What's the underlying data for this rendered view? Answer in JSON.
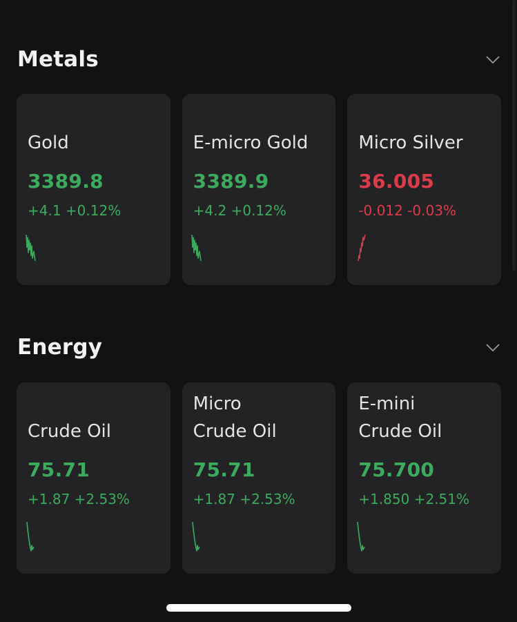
{
  "colors": {
    "positive": "#3cab5e",
    "negative": "#dc3c4a"
  },
  "sections": [
    {
      "title": "Metals",
      "toggle_icon": "chevron-down-icon",
      "cards": [
        {
          "name": "Gold",
          "price": "3389.8",
          "change": "+4.1 +0.12%",
          "direction": "up",
          "sparkline": "spike-wave"
        },
        {
          "name": "E-micro Gold",
          "price": "3389.9",
          "change": "+4.2 +0.12%",
          "direction": "up",
          "sparkline": "spike-wave"
        },
        {
          "name": "Micro Silver",
          "price": "36.005",
          "change": "-0.012 -0.03%",
          "direction": "down",
          "sparkline": "rise-spike"
        }
      ]
    },
    {
      "title": "Energy",
      "toggle_icon": "chevron-down-icon",
      "cards": [
        {
          "name": "Crude Oil",
          "price": "75.71",
          "change": "+1.87 +2.53%",
          "direction": "up",
          "sparkline": "drop-hook"
        },
        {
          "name": "Micro\nCrude Oil",
          "price": "75.71",
          "change": "+1.87 +2.53%",
          "direction": "up",
          "sparkline": "drop-hook"
        },
        {
          "name": "E-mini\nCrude Oil",
          "price": "75.700",
          "change": "+1.850 +2.51%",
          "direction": "up",
          "sparkline": "drop-hook"
        }
      ]
    }
  ]
}
